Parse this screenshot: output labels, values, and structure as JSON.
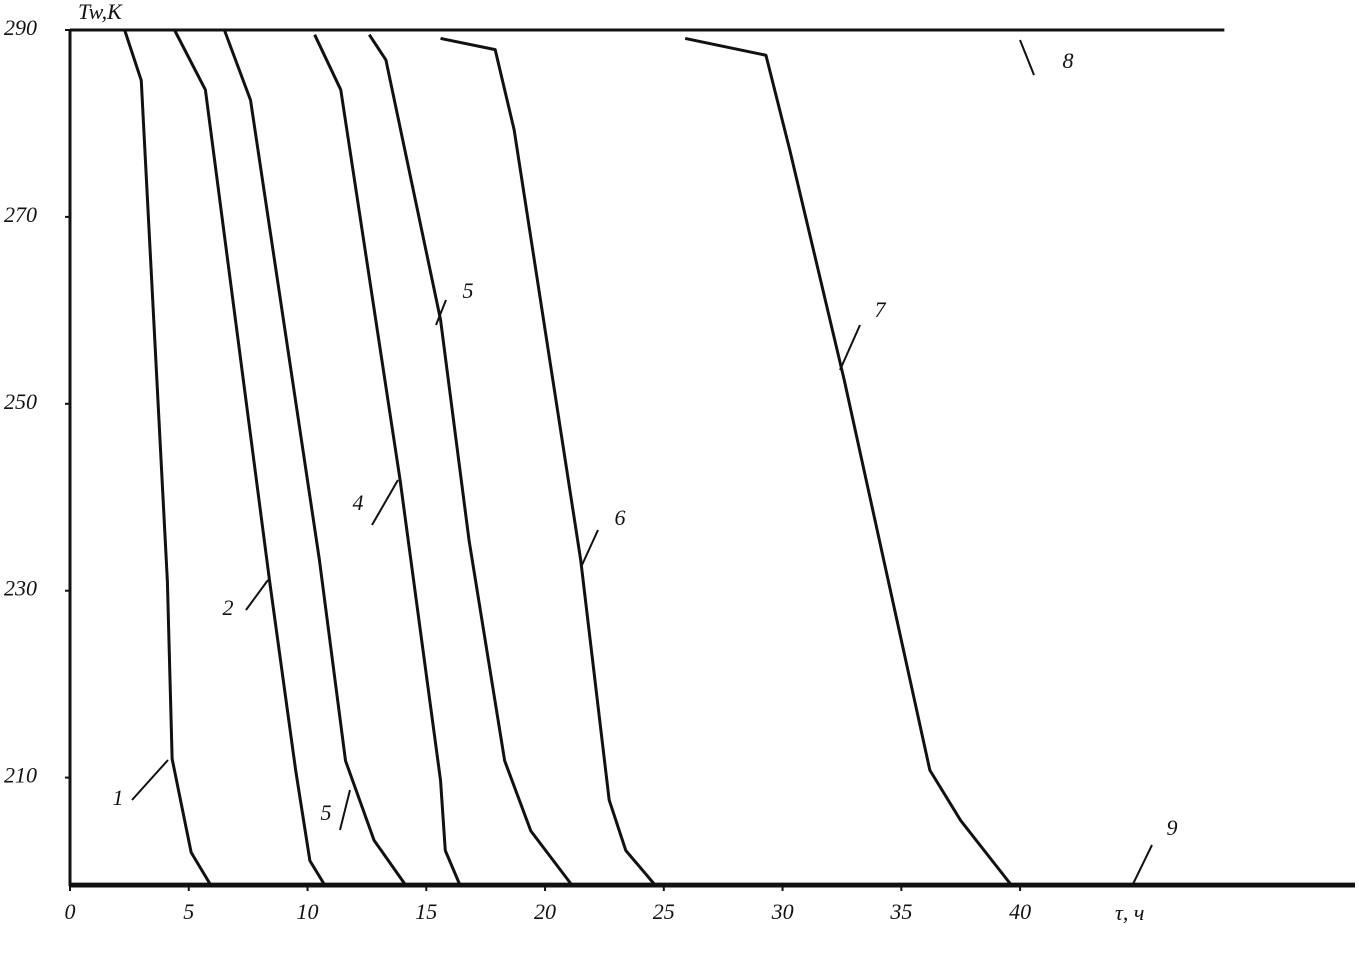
{
  "chart_data": {
    "type": "line",
    "y_label": "Tw,K",
    "x_label": "τ, ч",
    "xlim": [
      0,
      54.1
    ],
    "ylim": [
      198.4,
      290
    ],
    "xticks": [
      0,
      5,
      10,
      15,
      20,
      25,
      30,
      35,
      40
    ],
    "yticks": [
      210,
      230,
      250,
      270,
      290
    ],
    "color": "#111111",
    "series": [
      {
        "name": "1",
        "x": [
          2.3,
          3,
          4.1,
          4.3,
          5.1,
          5.9
        ],
        "values": [
          290,
          284.6,
          231,
          212,
          202,
          198.6
        ]
      },
      {
        "name": "2",
        "x": [
          4.4,
          5.7,
          8.4,
          9.5,
          10.1,
          10.7
        ],
        "values": [
          290,
          283.6,
          231.1,
          210.8,
          201.1,
          198.6
        ]
      },
      {
        "name": "5",
        "x": [
          6.5,
          7.6,
          10.5,
          11.6,
          12.8,
          14.1
        ],
        "values": [
          290,
          282.5,
          233.3,
          211.8,
          203.3,
          198.6
        ]
      },
      {
        "name": "4",
        "x": [
          10.3,
          11.4,
          13.9,
          15.6,
          15.8,
          16.4
        ],
        "values": [
          289.5,
          283.6,
          241.8,
          209.7,
          202.2,
          198.6
        ]
      },
      {
        "name": "5",
        "x": [
          12.6,
          13.3,
          15.6,
          16.8,
          18.3,
          19.4,
          21.1
        ],
        "values": [
          289.5,
          286.8,
          259,
          235.4,
          211.8,
          204.3,
          198.6
        ]
      },
      {
        "name": "6",
        "x": [
          15.6,
          17.9,
          18.7,
          21.5,
          22.7,
          23.4,
          24.6
        ],
        "values": [
          289.1,
          287.9,
          279.3,
          233.3,
          207.6,
          202.2,
          198.6
        ]
      },
      {
        "name": "7",
        "x": [
          25.9,
          29.3,
          30.3,
          32.6,
          36.2,
          37.5,
          39.6
        ],
        "values": [
          289.1,
          287.3,
          277.2,
          252.5,
          210.8,
          205.4,
          198.6
        ]
      },
      {
        "name": "8",
        "x": [
          0,
          48.6
        ],
        "values": [
          290,
          290
        ]
      },
      {
        "name": "9",
        "x": [
          0,
          54.1
        ],
        "values": [
          198.6,
          198.6
        ]
      }
    ]
  }
}
